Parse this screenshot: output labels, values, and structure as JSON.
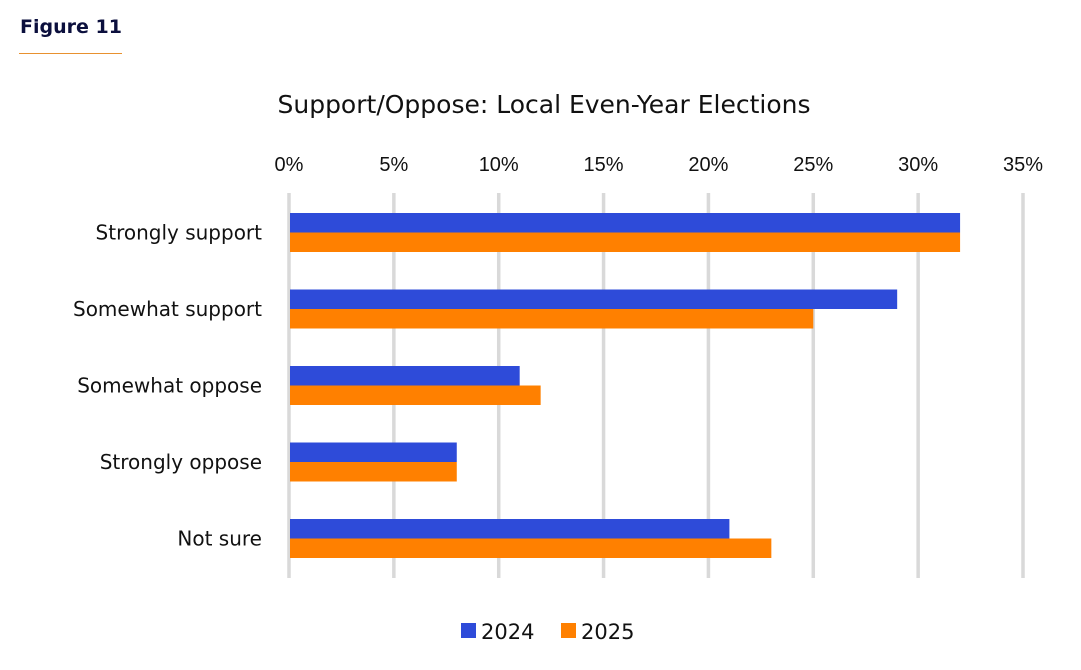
{
  "figure_label": "Figure 11",
  "colors": {
    "accent_rule": "#e8912f",
    "grid": "#d9d9d9"
  },
  "chart_data": {
    "type": "bar",
    "orientation": "horizontal",
    "title": "Support/Oppose: Local Even-Year Elections",
    "xlabel": "",
    "ylabel": "",
    "xlim": [
      0,
      35
    ],
    "x_ticks": [
      "0%",
      "5%",
      "10%",
      "15%",
      "20%",
      "25%",
      "30%",
      "35%"
    ],
    "x_tick_values": [
      0,
      5,
      10,
      15,
      20,
      25,
      30,
      35
    ],
    "x_axis_position": "top",
    "grid": true,
    "categories": [
      "Strongly support",
      "Somewhat support",
      "Somewhat oppose",
      "Strongly oppose",
      "Not sure"
    ],
    "series": [
      {
        "name": "2024",
        "color": "#2e4bd9",
        "values": [
          32,
          29,
          11,
          8,
          21
        ]
      },
      {
        "name": "2025",
        "color": "#ff8000",
        "values": [
          32,
          25,
          12,
          8,
          23
        ]
      }
    ],
    "legend_position": "bottom-center"
  }
}
